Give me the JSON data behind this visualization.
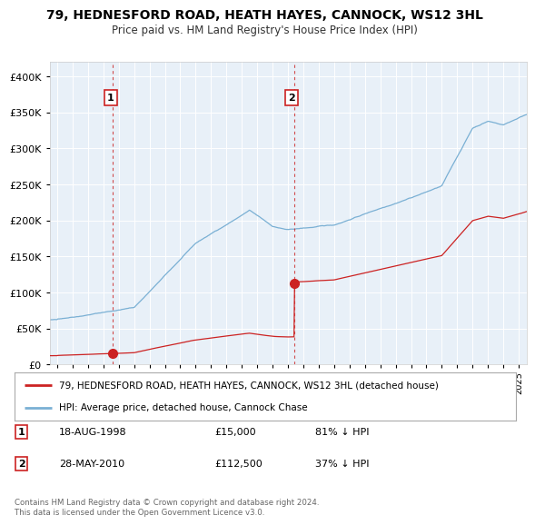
{
  "title": "79, HEDNESFORD ROAD, HEATH HAYES, CANNOCK, WS12 3HL",
  "subtitle": "Price paid vs. HM Land Registry's House Price Index (HPI)",
  "background_color": "#f0f4f8",
  "plot_bg_color": "#e8f0f8",
  "sale1": {
    "date_num": 1998.63,
    "price": 15000,
    "label": "1"
  },
  "sale2": {
    "date_num": 2010.4,
    "price": 112500,
    "label": "2"
  },
  "legend_entry1": "79, HEDNESFORD ROAD, HEATH HAYES, CANNOCK, WS12 3HL (detached house)",
  "legend_entry2": "HPI: Average price, detached house, Cannock Chase",
  "annotation1_date": "18-AUG-1998",
  "annotation1_price": "£15,000",
  "annotation1_hpi": "81% ↓ HPI",
  "annotation2_date": "28-MAY-2010",
  "annotation2_price": "£112,500",
  "annotation2_hpi": "37% ↓ HPI",
  "footer": "Contains HM Land Registry data © Crown copyright and database right 2024.\nThis data is licensed under the Open Government Licence v3.0.",
  "ylim": [
    0,
    420000
  ],
  "xlim_start": 1994.5,
  "xlim_end": 2025.5,
  "red_line_color": "#cc2222",
  "blue_line_color": "#7ab0d4",
  "sale_dot_color": "#cc2222"
}
